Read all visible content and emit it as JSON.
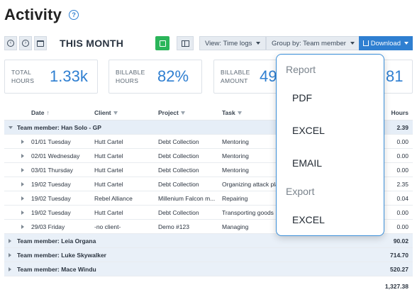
{
  "page": {
    "title": "Activity",
    "help_icon": "question-circle-icon"
  },
  "toolbar": {
    "prev_icon": "chevron-left-circle-icon",
    "next_icon": "chevron-right-circle-icon",
    "calendar_icon": "calendar-icon",
    "period_label": "THIS MONTH",
    "green_icon": "square-icon",
    "layout_icon": "columns-icon",
    "view_select": "View: Time logs",
    "group_select": "Group by: Team member",
    "download_label": "Download",
    "download_icon": "download-icon"
  },
  "stats": [
    {
      "label_line1": "TOTAL",
      "label_line2": "HOURS",
      "value": "1.33k"
    },
    {
      "label_line1": "BILLABLE",
      "label_line2": "HOURS",
      "value": "82%"
    },
    {
      "label_line1": "BILLABLE",
      "label_line2": "AMOUNT",
      "value": "49",
      "value_tail": "81"
    }
  ],
  "table": {
    "columns": {
      "date": "Date",
      "client": "Client",
      "project": "Project",
      "task": "Task",
      "hours": "Hours"
    },
    "sort_glyph": "↑",
    "groups": [
      {
        "label": "Team member: Han Solo - GP",
        "total": "2.39",
        "expanded": true,
        "rows": [
          {
            "date": "01/01 Tuesday",
            "client": "Hutt Cartel",
            "project": "Debt Collection",
            "task": "Mentoring",
            "hours": "0.00"
          },
          {
            "date": "02/01 Wednesday",
            "client": "Hutt Cartel",
            "project": "Debt Collection",
            "task": "Mentoring",
            "hours": "0.00"
          },
          {
            "date": "03/01 Thursday",
            "client": "Hutt Cartel",
            "project": "Debt Collection",
            "task": "Mentoring",
            "hours": "0.00"
          },
          {
            "date": "19/02 Tuesday",
            "client": "Hutt Cartel",
            "project": "Debt Collection",
            "task": "Organizing attack pla",
            "hours": "2.35"
          },
          {
            "date": "19/02 Tuesday",
            "client": "Rebel Alliance",
            "project": "Millenium Falcon m...",
            "task": "Repairing",
            "hours": "0.04"
          },
          {
            "date": "19/02 Tuesday",
            "client": "Hutt Cartel",
            "project": "Debt Collection",
            "task": "Transporting goods",
            "hours": "0.00"
          },
          {
            "date": "29/03 Friday",
            "client": "-no client-",
            "project": "Demo #123",
            "task": "Managing",
            "hours": "0.00"
          }
        ]
      },
      {
        "label": "Team member: Leia Organa",
        "total": "90.02",
        "expanded": false,
        "rows": []
      },
      {
        "label": "Team member: Luke Skywalker",
        "total": "714.70",
        "expanded": false,
        "rows": []
      },
      {
        "label": "Team member: Mace Windu",
        "total": "520.27",
        "expanded": false,
        "rows": []
      }
    ],
    "grand_total": "1,327.38"
  },
  "download_menu": {
    "report_heading": "Report",
    "report_items": [
      "PDF",
      "EXCEL",
      "EMAIL"
    ],
    "export_heading": "Export",
    "export_items": [
      "EXCEL"
    ]
  }
}
